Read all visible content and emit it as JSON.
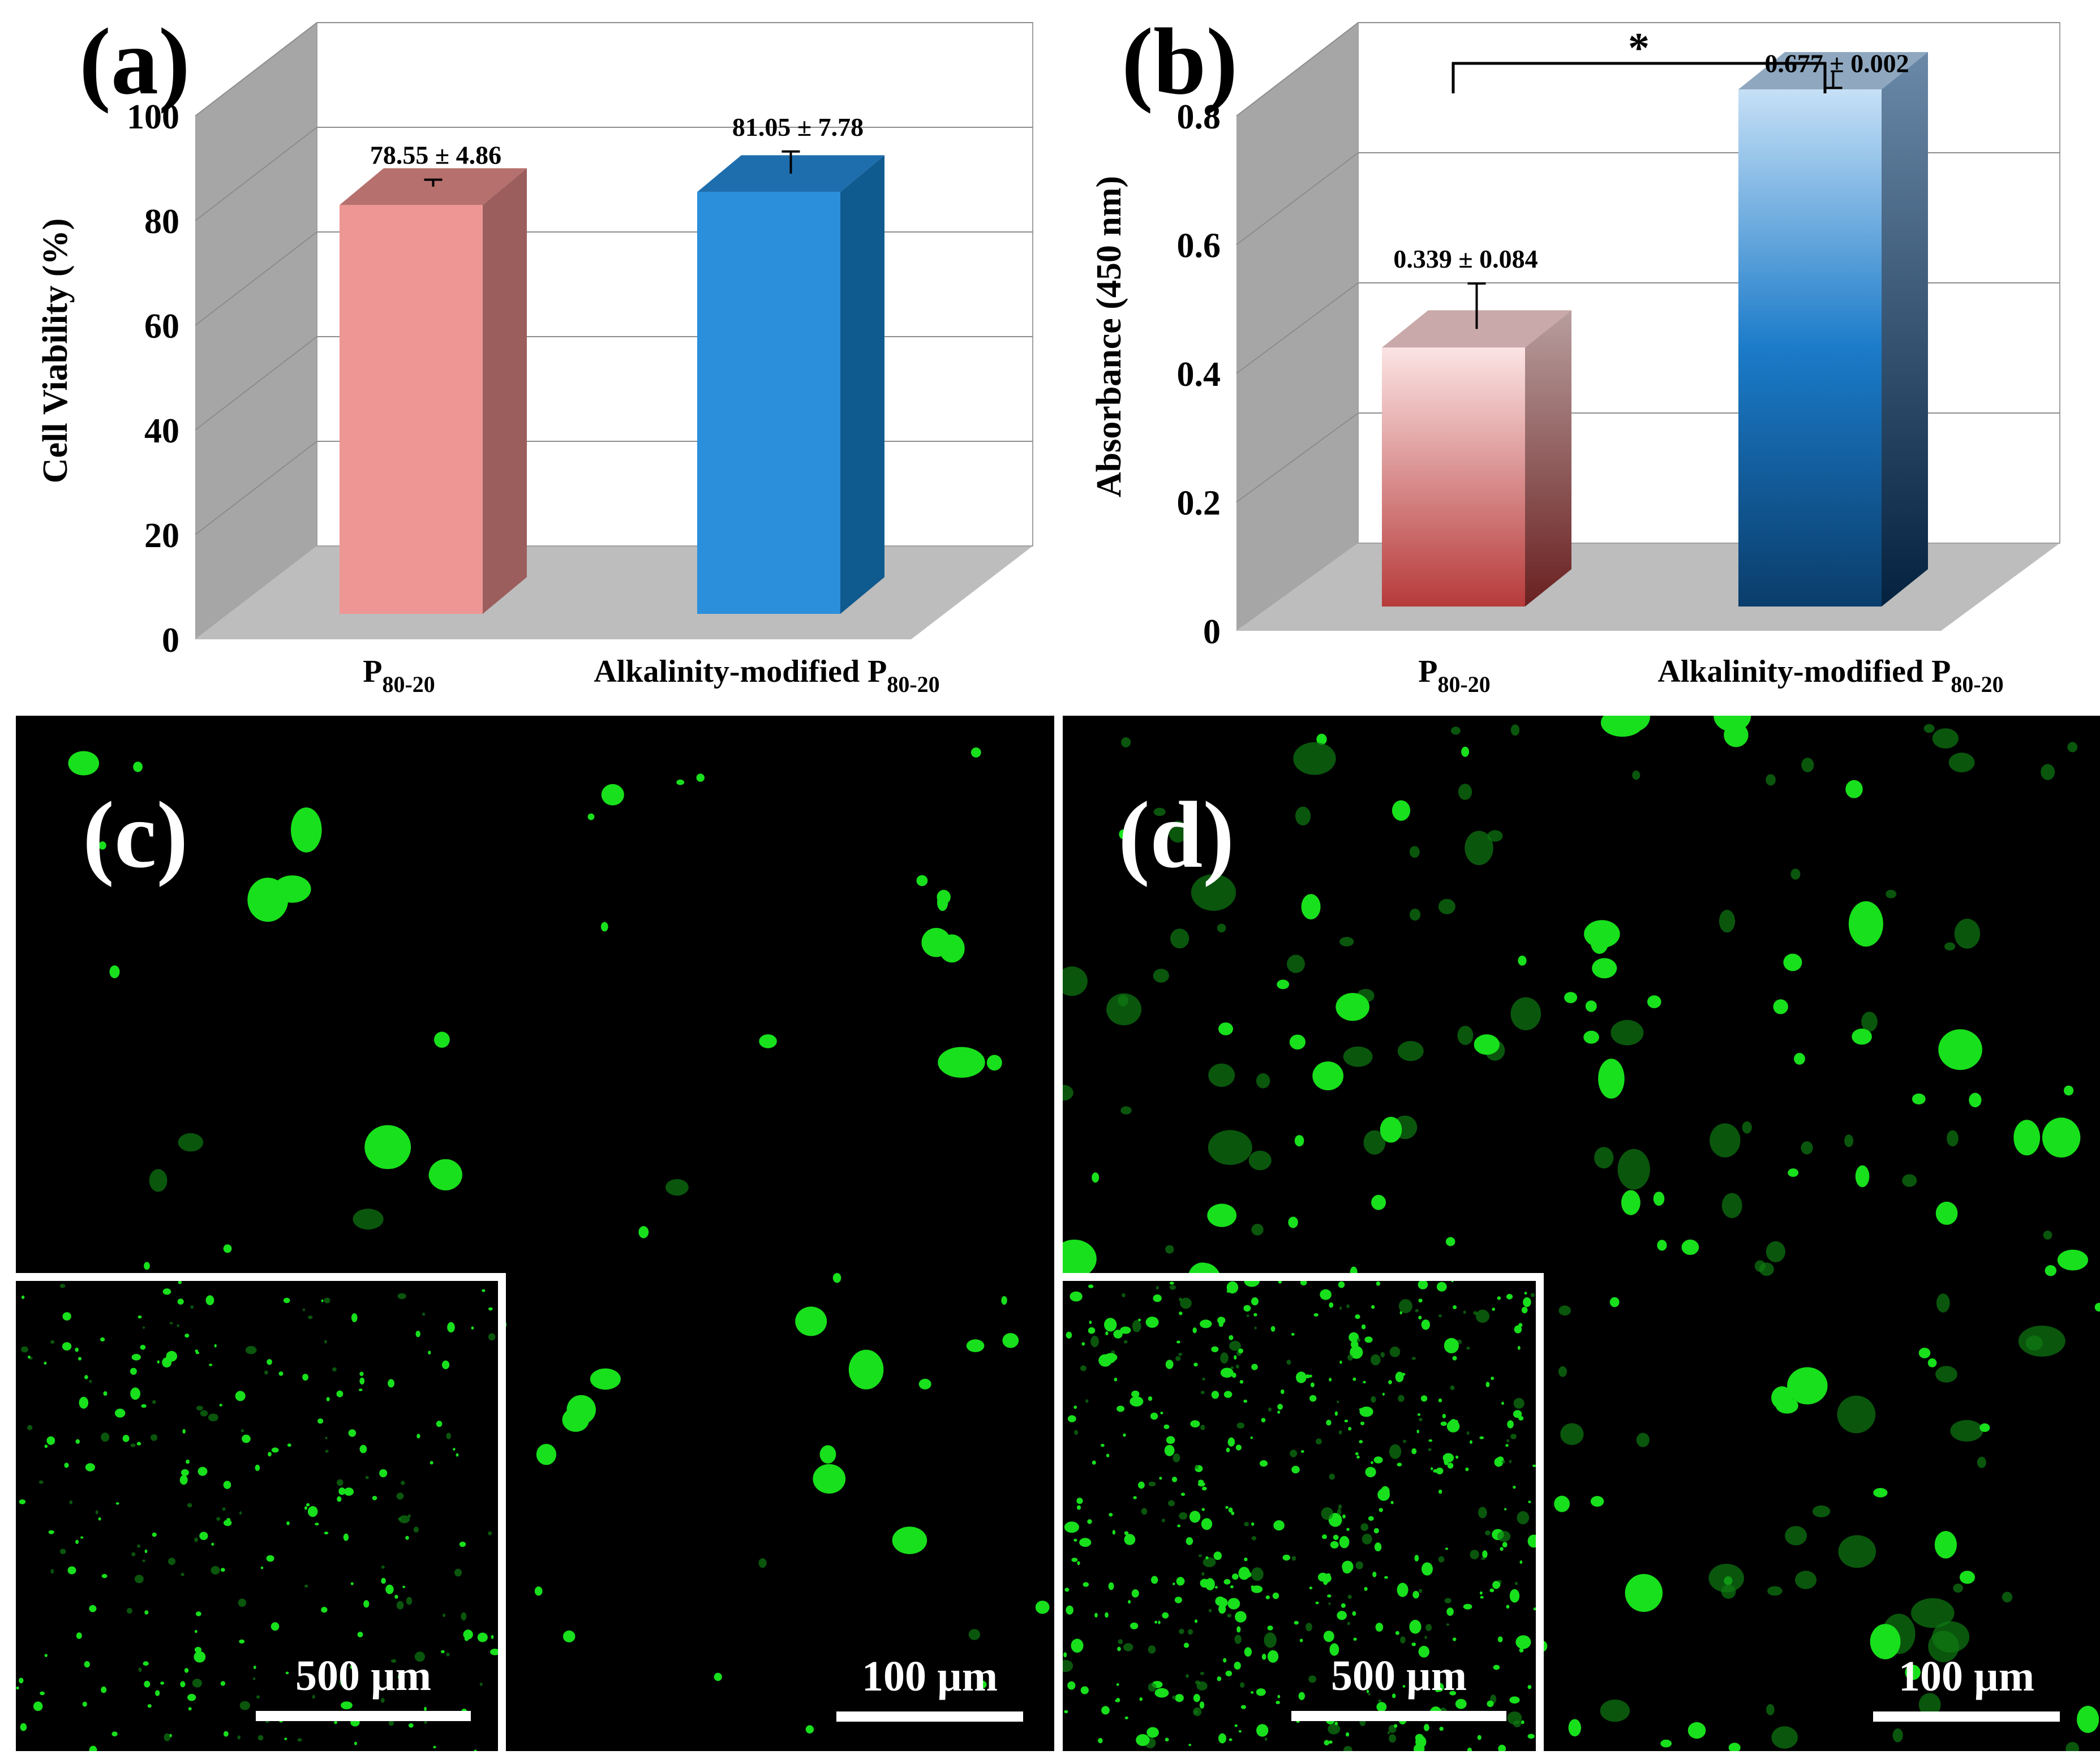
{
  "chart_data": [
    {
      "panel_label": "(a)",
      "type": "bar",
      "style": "3d-column",
      "categories": [
        "P_80-20",
        "Alkalinity-modified P_80-20"
      ],
      "category_base": [
        "P",
        "Alkalinity-modified P"
      ],
      "category_sub": [
        "80-20",
        "80-20"
      ],
      "values": [
        78.55,
        81.05
      ],
      "errors": [
        4.86,
        7.78
      ],
      "value_labels": [
        "78.55 ± 4.86",
        "81.05 ± 7.78"
      ],
      "ylabel": "Cell Viability (%)",
      "xlabel": "",
      "ylim": [
        0,
        100
      ],
      "yticks": [
        0,
        20,
        40,
        60,
        80,
        100
      ],
      "grid": true,
      "colors": {
        "bar1_front": "#EE9694",
        "bar1_side": "#9B5E5D",
        "bar1_top": "#B6706D",
        "bar2_front": "#2B8FDB",
        "bar2_side": "#0F5A8F",
        "bar2_top": "#1E6EAE",
        "wall": "#A6A6A6",
        "floor": "#BDBDBD"
      }
    },
    {
      "panel_label": "(b)",
      "type": "bar",
      "style": "3d-column-gradient",
      "categories": [
        "P_80-20",
        "Alkalinity-modified P_80-20"
      ],
      "category_base": [
        "P",
        "Alkalinity-modified P"
      ],
      "category_sub": [
        "80-20",
        "80-20"
      ],
      "values": [
        0.339,
        0.677
      ],
      "errors": [
        0.084,
        0.002
      ],
      "value_labels": [
        "0.339 ± 0.084",
        "0.677 ± 0.002"
      ],
      "ylabel": "Absorbance (450 nm)",
      "xlabel": "",
      "ylim": [
        0,
        0.8
      ],
      "yticks": [
        0,
        0.2,
        0.4,
        0.6,
        0.8
      ],
      "ytick_labels": [
        "0",
        "0.2",
        "0.4",
        "0.6",
        "0.8"
      ],
      "significance": "*",
      "grid": true,
      "colors": {
        "bar1_top_grad": "#FCE4E4",
        "bar1_bottom_grad": "#B73A3A",
        "bar2_top_grad": "#C6E0F6",
        "bar2_bottom_grad": "#0A3D6B",
        "wall": "#A6A6A6",
        "floor": "#BDBDBD"
      }
    }
  ],
  "micrographs": [
    {
      "panel_label": "(c)",
      "scale_main": "100 µm",
      "scale_inset": "500 µm",
      "density": "low"
    },
    {
      "panel_label": "(d)",
      "scale_main": "100 µm",
      "scale_inset": "500 µm",
      "density": "high"
    }
  ],
  "colors": {
    "fluorescence": "#18E01C",
    "background": "#000000"
  }
}
